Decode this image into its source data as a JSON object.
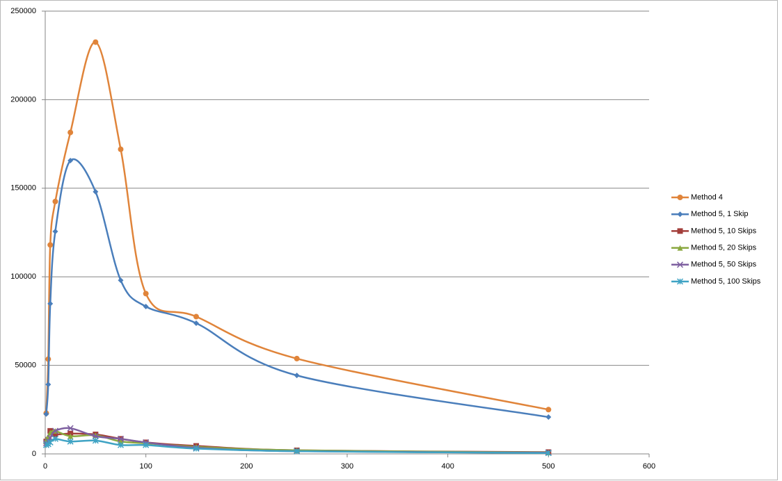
{
  "chart_data": {
    "type": "line",
    "smooth": true,
    "grid": true,
    "xlim": [
      0,
      600
    ],
    "xticks": [
      0,
      100,
      200,
      300,
      400,
      500,
      600
    ],
    "ylim": [
      0,
      250000
    ],
    "yticks": [
      0,
      50000,
      100000,
      150000,
      200000,
      250000
    ],
    "x": [
      1,
      3,
      5,
      10,
      25,
      50,
      75,
      100,
      150,
      250,
      500
    ],
    "series": [
      {
        "name": "Method 4",
        "color": "#e0843a",
        "marker": "circle",
        "values": [
          23000,
          53500,
          118000,
          142500,
          181500,
          232500,
          172000,
          90500,
          77500,
          53800,
          25000
        ]
      },
      {
        "name": "Method 5, 1 Skip",
        "color": "#4a7ebb",
        "marker": "diamond",
        "values": [
          22500,
          39200,
          84800,
          125600,
          165600,
          148000,
          98000,
          83200,
          73800,
          44300,
          20800
        ]
      },
      {
        "name": "Method 5, 10 Skips",
        "color": "#a33e3a",
        "marker": "square",
        "values": [
          7000,
          8000,
          13000,
          11000,
          11500,
          11000,
          8500,
          6500,
          4500,
          2000,
          1000
        ]
      },
      {
        "name": "Method 5, 20 Skips",
        "color": "#8aa83f",
        "marker": "triangle",
        "values": [
          8000,
          10000,
          12000,
          13000,
          10000,
          10500,
          7000,
          6000,
          4000,
          2000,
          800
        ]
      },
      {
        "name": "Method 5, 50 Skips",
        "color": "#7d5fa0",
        "marker": "x",
        "values": [
          6000,
          7000,
          9000,
          13000,
          14500,
          10000,
          8500,
          6500,
          3500,
          1500,
          700
        ]
      },
      {
        "name": "Method 5, 100 Skips",
        "color": "#3fa3c4",
        "marker": "star",
        "values": [
          5000,
          5500,
          6500,
          8500,
          7000,
          7500,
          5000,
          5000,
          3000,
          1500,
          500
        ]
      }
    ]
  }
}
